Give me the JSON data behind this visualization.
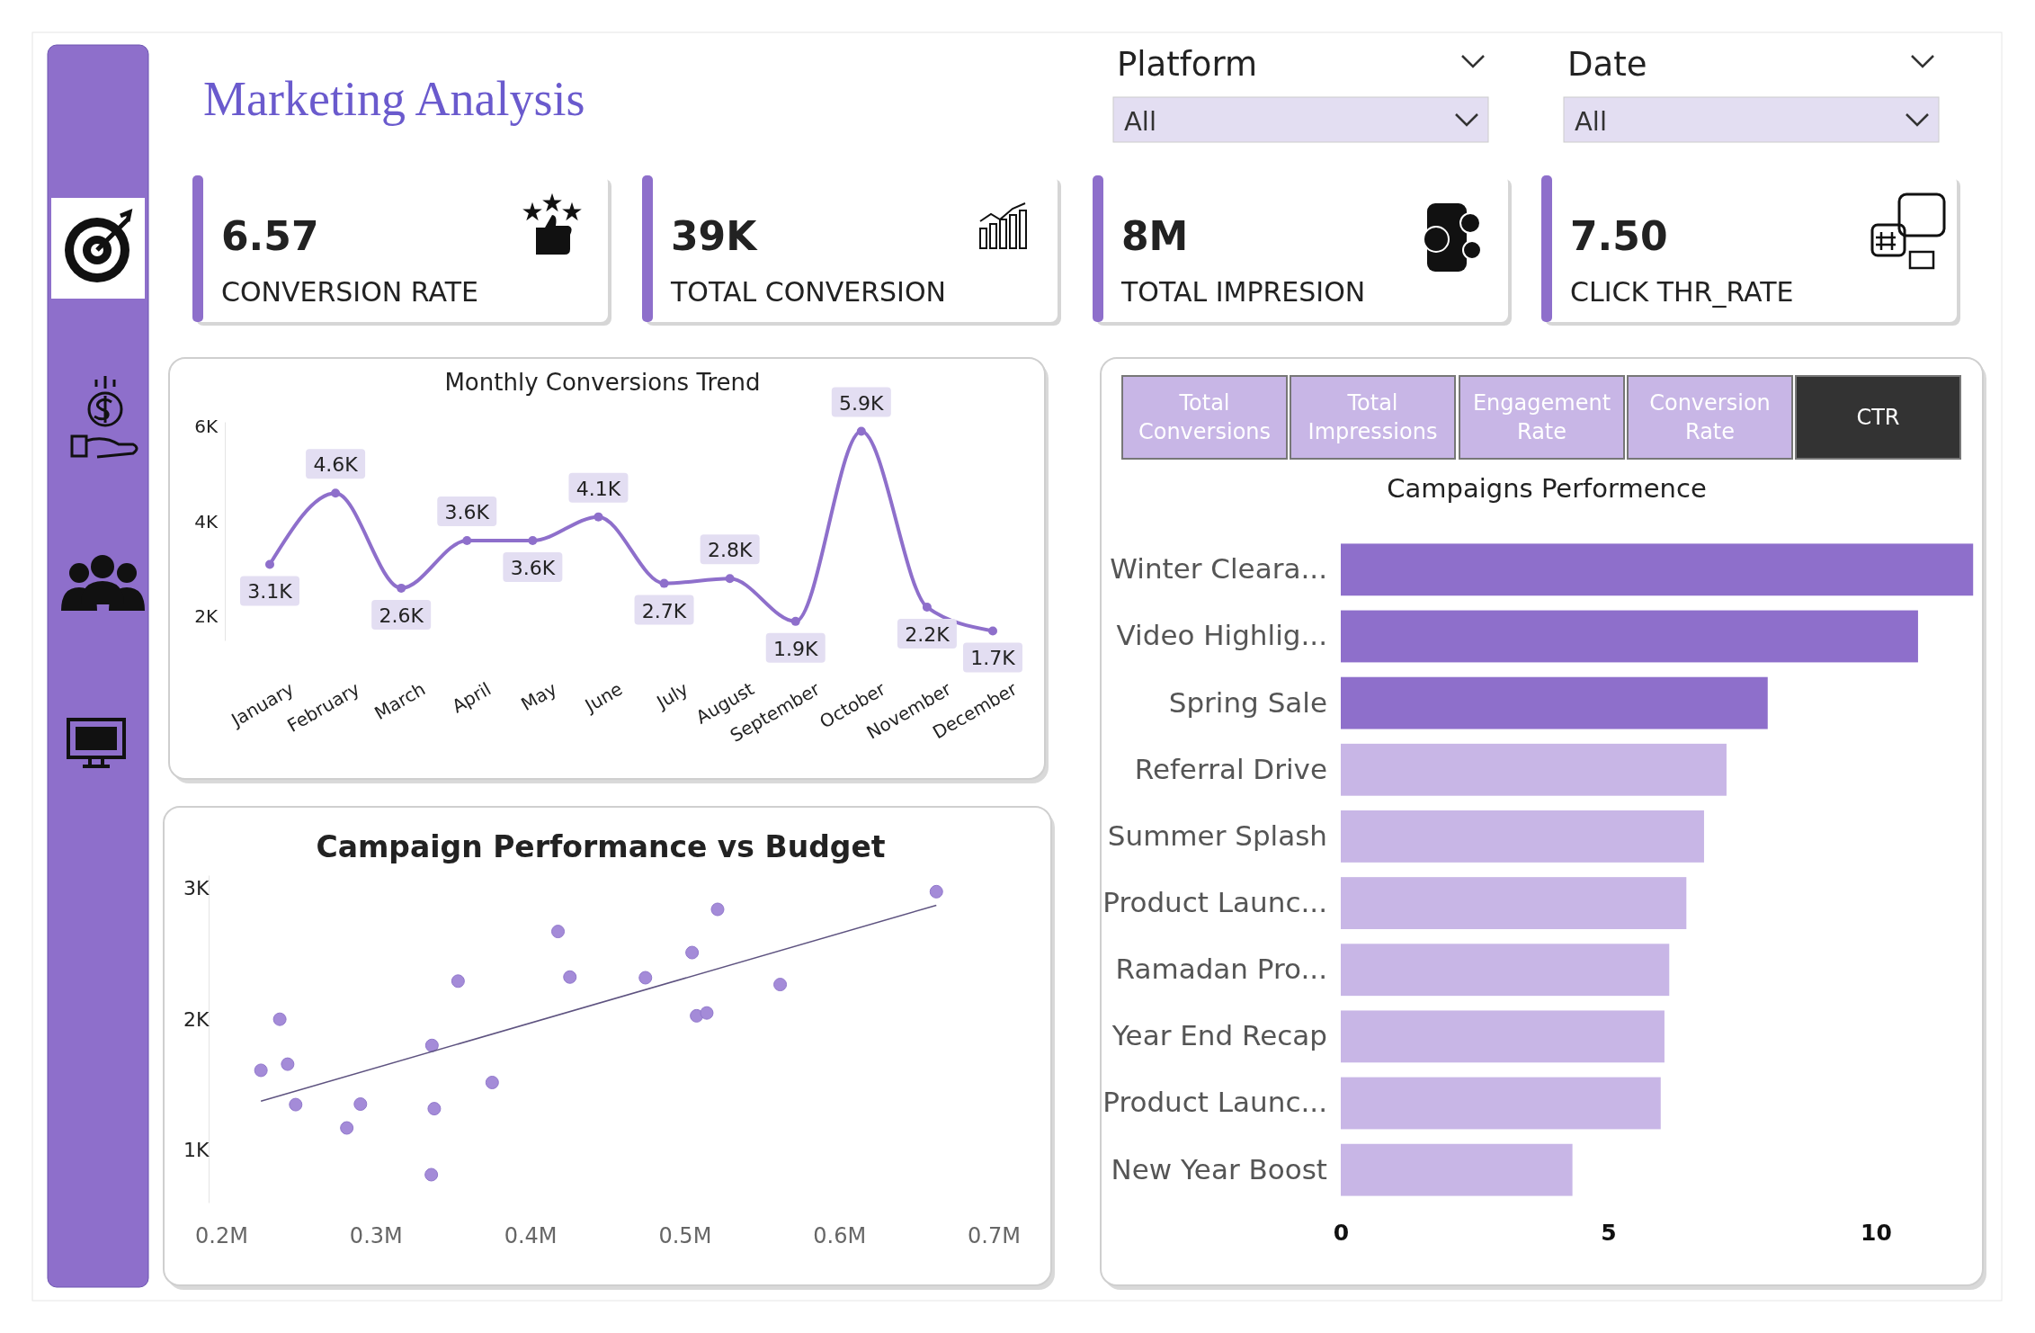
{
  "chart_data": [
    {
      "type": "other",
      "title": "Marketing Analysis",
      "categories": [
        "CONVERSION RATE",
        "TOTAL CONVERSION",
        "TOTAL IMPRESION",
        "CLICK THR_RATE"
      ],
      "values": [
        6.57,
        39000,
        8000000,
        7.5
      ],
      "value_labels": [
        "6.57",
        "39K",
        "8M",
        "7.50"
      ],
      "annotations": [
        "Platform",
        "All",
        "Date",
        "All"
      ]
    },
    {
      "type": "line",
      "title": "Monthly Conversions Trend",
      "categories": [
        "January",
        "February",
        "March",
        "April",
        "May",
        "June",
        "July",
        "August",
        "September",
        "October",
        "November",
        "December"
      ],
      "ylim": [
        1500,
        6100
      ],
      "yticks": [
        {
          "value": 2000,
          "label": "2K"
        },
        {
          "value": 4000,
          "label": "4K"
        },
        {
          "value": 6000,
          "label": "6K"
        }
      ],
      "marker": "circle",
      "series": [
        {
          "color": "#8e6fcb",
          "values": [
            3100,
            4600,
            2600,
            3600,
            3600,
            4100,
            2700,
            2800,
            1900,
            5900,
            2200,
            1700
          ],
          "value_labels": [
            "3.1K",
            "4.6K",
            "2.6K",
            "3.6K",
            "3.6K",
            "4.1K",
            "2.7K",
            "2.8K",
            "1.9K",
            "5.9K",
            "2.2K",
            "1.7K"
          ]
        }
      ]
    },
    {
      "type": "scatter",
      "title": "Campaign Performance vs Budget",
      "xlim": [
        200000,
        700000
      ],
      "xticks": [
        {
          "value": 200000,
          "label": "0.2M"
        },
        {
          "value": 300000,
          "label": "0.3M"
        },
        {
          "value": 400000,
          "label": "0.4M"
        },
        {
          "value": 500000,
          "label": "0.5M"
        },
        {
          "value": 600000,
          "label": "0.6M"
        },
        {
          "value": 700000,
          "label": "0.7M"
        }
      ],
      "ylim": [
        600,
        3100
      ],
      "yticks": [
        {
          "value": 1000,
          "label": "1K"
        },
        {
          "value": 2000,
          "label": "2K"
        },
        {
          "value": 3000,
          "label": "3K"
        }
      ],
      "series": [
        {
          "type": "scatter",
          "color": "#a48bd8",
          "marker": "circle",
          "x": [
            225700,
            237900,
            243000,
            248200,
            281300,
            290100,
            336000,
            336400,
            337900,
            353300,
            375400,
            418000,
            425700,
            474600,
            504800,
            507700,
            514300,
            521300,
            561800,
            662900
          ],
          "values": [
            1610,
            2000,
            1657,
            1348,
            1170,
            1352,
            813,
            1800,
            1317,
            2291,
            1517,
            2670,
            2322,
            2317,
            2509,
            2026,
            2048,
            2839,
            2265,
            2974
          ]
        },
        {
          "type": "line",
          "color": "#5e5380",
          "x": [
            225700,
            662900
          ],
          "values": [
            1374,
            2870
          ]
        }
      ]
    },
    {
      "type": "bar",
      "orientation": "horizontal",
      "title": "Campaigns Performence",
      "categories": [
        "Winter Cleara...",
        "Video Highlig...",
        "Spring Sale",
        "Referral Drive",
        "Summer Splash",
        "Product Launc...",
        "Ramadan Pro...",
        "Year End Recap",
        "Product Launc...",
        "New Year Boost"
      ],
      "values": [
        11.82,
        10.79,
        7.98,
        7.21,
        6.79,
        6.46,
        6.14,
        6.05,
        5.98,
        4.33
      ],
      "colors": [
        "#8e6fcb",
        "#8e6fcb",
        "#8e6fcb",
        "#c8b6e6",
        "#c8b6e6",
        "#c8b6e6",
        "#c8b6e6",
        "#c8b6e6",
        "#c8b6e6",
        "#c8b6e6"
      ],
      "xlim": [
        0,
        11.85
      ],
      "xticks": [
        0,
        5,
        10
      ],
      "annotations": [
        "Total Conversions",
        "Total Impressions",
        "Engagement Rate",
        "Conversion Rate",
        "CTR"
      ]
    }
  ]
}
